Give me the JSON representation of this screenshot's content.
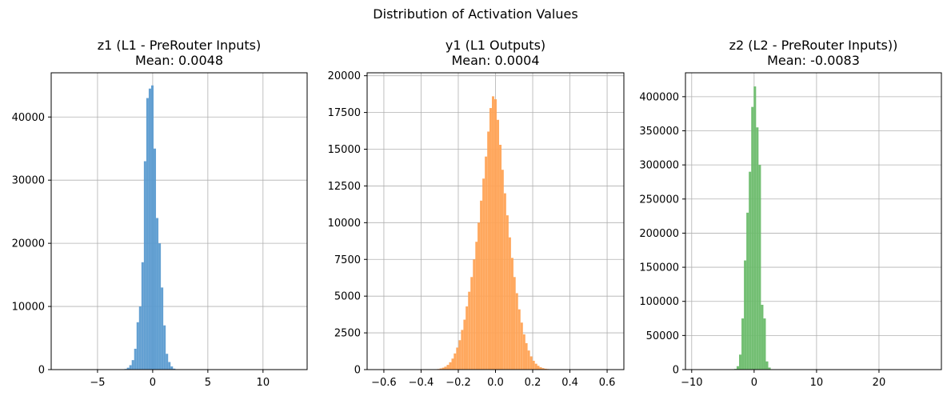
{
  "suptitle": "Distribution of Activation Values",
  "chart_data": [
    {
      "type": "bar",
      "title": "z1 (L1 - PreRouter Inputs)",
      "subtitle": "Mean: 0.0048",
      "color": "#5b9bd0",
      "xlim": [
        -9.2,
        14.0
      ],
      "ylim": [
        0,
        47000
      ],
      "xticks": [
        -5,
        0,
        5,
        10
      ],
      "xtick_labels": [
        "−5",
        "0",
        "5",
        "10"
      ],
      "yticks": [
        0,
        10000,
        20000,
        30000,
        40000
      ],
      "ytick_labels": [
        "0",
        "10000",
        "20000",
        "30000",
        "40000"
      ],
      "grid": true,
      "bin_width": 0.22,
      "x": [
        -2.45,
        -2.23,
        -2.01,
        -1.79,
        -1.57,
        -1.35,
        -1.13,
        -0.91,
        -0.69,
        -0.47,
        -0.25,
        -0.03,
        0.19,
        0.41,
        0.63,
        0.85,
        1.07,
        1.29,
        1.51,
        1.73,
        1.95
      ],
      "values": [
        100,
        300,
        700,
        1500,
        3300,
        7500,
        10000,
        17000,
        33000,
        43000,
        44500,
        45000,
        35000,
        24000,
        20000,
        13000,
        7000,
        2500,
        1200,
        500,
        150
      ]
    },
    {
      "type": "bar",
      "title": "y1 (L1 Outputs)",
      "subtitle": "Mean: 0.0004",
      "color": "#ffa355",
      "xlim": [
        -0.69,
        0.69
      ],
      "ylim": [
        0,
        20200
      ],
      "xticks": [
        -0.6,
        -0.4,
        -0.2,
        0.0,
        0.2,
        0.4,
        0.6
      ],
      "xtick_labels": [
        "−0.6",
        "−0.4",
        "−0.2",
        "0.0",
        "0.2",
        "0.4",
        "0.6"
      ],
      "yticks": [
        0,
        2500,
        5000,
        7500,
        10000,
        12500,
        15000,
        17500,
        20000
      ],
      "ytick_labels": [
        "0",
        "2500",
        "5000",
        "7500",
        "10000",
        "12500",
        "15000",
        "17500",
        "20000"
      ],
      "grid": true,
      "bin_width": 0.0128,
      "x": [
        -0.32,
        -0.307,
        -0.294,
        -0.281,
        -0.269,
        -0.256,
        -0.243,
        -0.23,
        -0.218,
        -0.205,
        -0.192,
        -0.179,
        -0.166,
        -0.154,
        -0.141,
        -0.128,
        -0.115,
        -0.102,
        -0.09,
        -0.077,
        -0.064,
        -0.051,
        -0.038,
        -0.026,
        -0.013,
        0.0,
        0.013,
        0.026,
        0.038,
        0.051,
        0.064,
        0.077,
        0.09,
        0.102,
        0.115,
        0.128,
        0.141,
        0.154,
        0.166,
        0.179,
        0.192,
        0.205,
        0.218,
        0.23,
        0.243,
        0.256,
        0.269,
        0.281,
        0.294,
        0.307,
        0.32
      ],
      "values": [
        20,
        40,
        80,
        130,
        200,
        320,
        500,
        750,
        1100,
        1500,
        2000,
        2700,
        3400,
        4300,
        5300,
        6300,
        7500,
        8700,
        10000,
        11500,
        13000,
        14500,
        16200,
        17800,
        18600,
        18400,
        17000,
        15300,
        13600,
        12000,
        10500,
        9000,
        7600,
        6300,
        5200,
        4100,
        3200,
        2400,
        1800,
        1300,
        900,
        600,
        400,
        260,
        160,
        100,
        60,
        40,
        20,
        10,
        5
      ]
    },
    {
      "type": "bar",
      "title": "z2 (L2 - PreRouter Inputs))",
      "subtitle": "Mean: -0.0083",
      "color": "#6cbc6c",
      "xlim": [
        -11.0,
        30.0
      ],
      "ylim": [
        0,
        435000
      ],
      "xticks": [
        -10,
        0,
        10,
        20
      ],
      "xtick_labels": [
        "−10",
        "0",
        "10",
        "20"
      ],
      "yticks": [
        0,
        50000,
        100000,
        150000,
        200000,
        250000,
        300000,
        350000,
        400000
      ],
      "ytick_labels": [
        "0",
        "50000",
        "100000",
        "150000",
        "200000",
        "250000",
        "300000",
        "350000",
        "400000"
      ],
      "grid": true,
      "bin_width": 0.39,
      "x": [
        -3.0,
        -2.61,
        -2.22,
        -1.83,
        -1.44,
        -1.05,
        -0.66,
        -0.27,
        0.12,
        0.51,
        0.9,
        1.29,
        1.68,
        2.07,
        2.46,
        2.85
      ],
      "values": [
        1000,
        5000,
        22000,
        75000,
        160000,
        230000,
        290000,
        385000,
        415000,
        355000,
        300000,
        95000,
        75000,
        12000,
        3000,
        500
      ]
    }
  ]
}
